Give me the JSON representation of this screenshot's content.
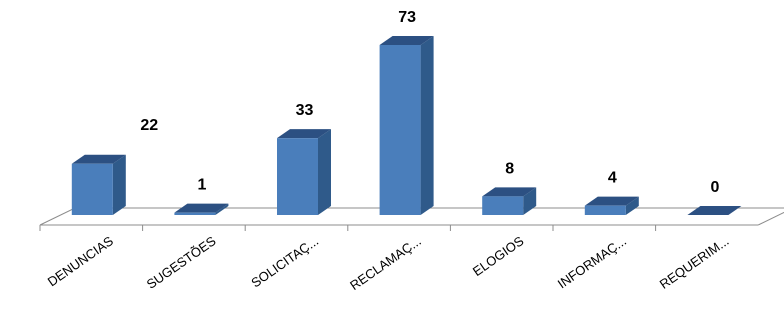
{
  "chart_data": {
    "type": "bar",
    "categories": [
      "DENUNCIAS",
      "SUGESTÕES",
      "SOLICITAÇ...",
      "RECLAMAÇ...",
      "ELOGIOS",
      "INFORMAÇ...",
      "REQUERIM..."
    ],
    "values": [
      22,
      1,
      33,
      73,
      8,
      4,
      0
    ],
    "title": "",
    "xlabel": "",
    "ylabel": "",
    "ylim": [
      0,
      73
    ],
    "grid": false,
    "legend": "none",
    "colors": {
      "bar_front": "#4A7EBB",
      "bar_side": "#2F5A8A",
      "bar_top": "#2C5082",
      "floor_line": "#8C8C8C"
    }
  }
}
